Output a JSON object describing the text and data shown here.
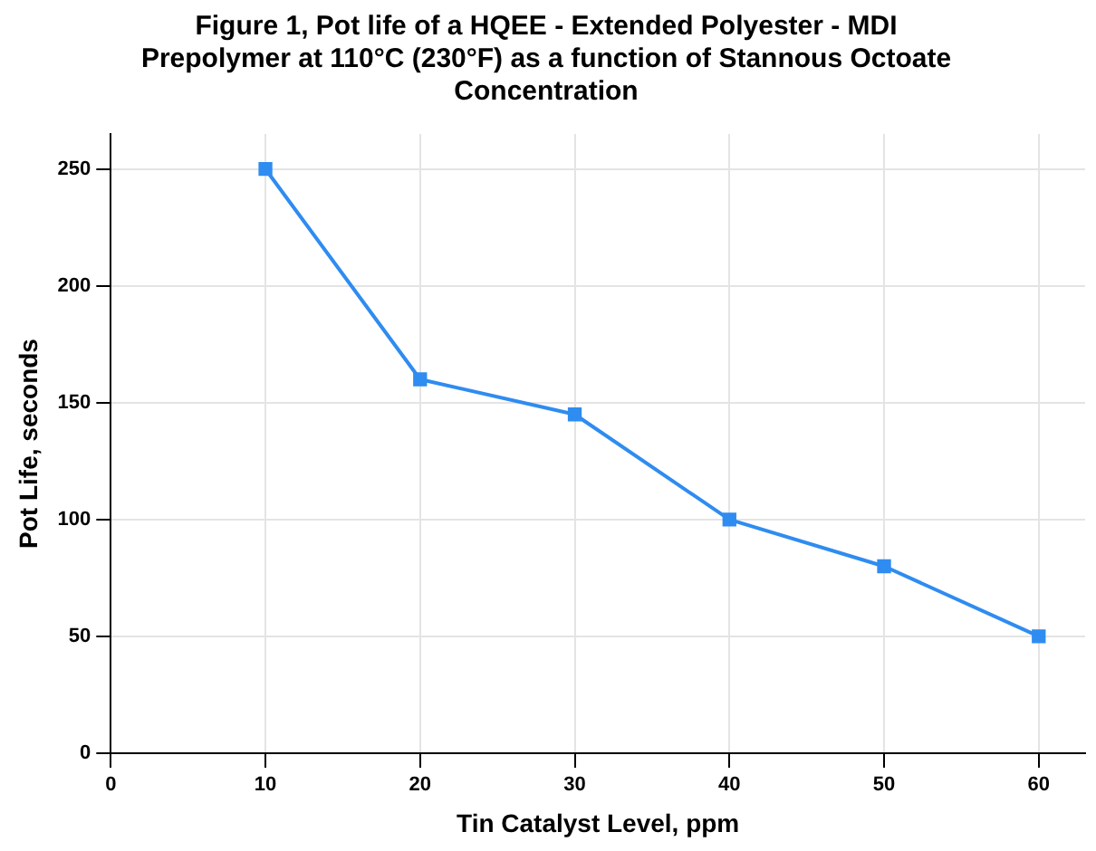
{
  "chart_data": {
    "type": "line",
    "title": "Figure 1, Pot life of a HQEE - Extended Polyester - MDI Prepolymer at 110°C (230°F) as a function of Stannous Octoate Concentration",
    "xlabel": "Tin Catalyst Level, ppm",
    "ylabel": "Pot Life, seconds",
    "x": [
      10,
      20,
      30,
      40,
      50,
      60
    ],
    "series": [
      {
        "color": "#2f8cf0",
        "values": [
          250,
          160,
          145,
          100,
          80,
          50
        ]
      }
    ],
    "xlim": [
      0,
      63
    ],
    "xticks": [
      0,
      10,
      20,
      30,
      40,
      50,
      60
    ],
    "ylim": [
      0,
      265
    ],
    "yticks": [
      0,
      50,
      100,
      150,
      200,
      250
    ],
    "grid": true,
    "legend": false,
    "marker": "square",
    "line_style": "solid"
  }
}
